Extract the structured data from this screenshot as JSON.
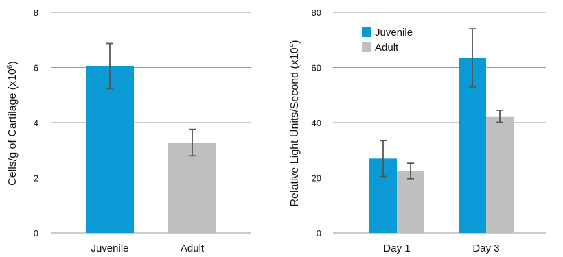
{
  "colors": {
    "juvenile": "#0a9ad6",
    "adult": "#bfbfbf",
    "error_bar": "#555555",
    "grid": "#9a9a9a"
  },
  "chart_data": [
    {
      "type": "bar",
      "categories": [
        "Juvenile",
        "Adult"
      ],
      "values": [
        6.05,
        3.28
      ],
      "errors": [
        0.82,
        0.48
      ],
      "bar_colors": [
        "juvenile",
        "adult"
      ],
      "ylabel_main": "Cells/g of Cartilage (x10",
      "ylabel_sup": "6",
      "ylabel_tail": ")",
      "ylim": [
        0,
        8
      ],
      "yticks": [
        "0",
        "2",
        "4",
        "6",
        "8"
      ],
      "grid": true
    },
    {
      "type": "bar",
      "categories": [
        "Day 1",
        "Day 3"
      ],
      "series": [
        {
          "name": "Juvenile",
          "color": "juvenile",
          "values": [
            27,
            63.5
          ],
          "errors": [
            6.5,
            10.5
          ]
        },
        {
          "name": "Adult",
          "color": "adult",
          "values": [
            22.5,
            42.3
          ],
          "errors": [
            2.8,
            2.2
          ]
        }
      ],
      "ylabel_main": "Relative Light Units/Second (x10",
      "ylabel_sup": "4",
      "ylabel_tail": ")",
      "ylim": [
        0,
        80
      ],
      "yticks": [
        "0",
        "20",
        "40",
        "60",
        "80"
      ],
      "grid": true,
      "legend_position": "top-left"
    }
  ]
}
